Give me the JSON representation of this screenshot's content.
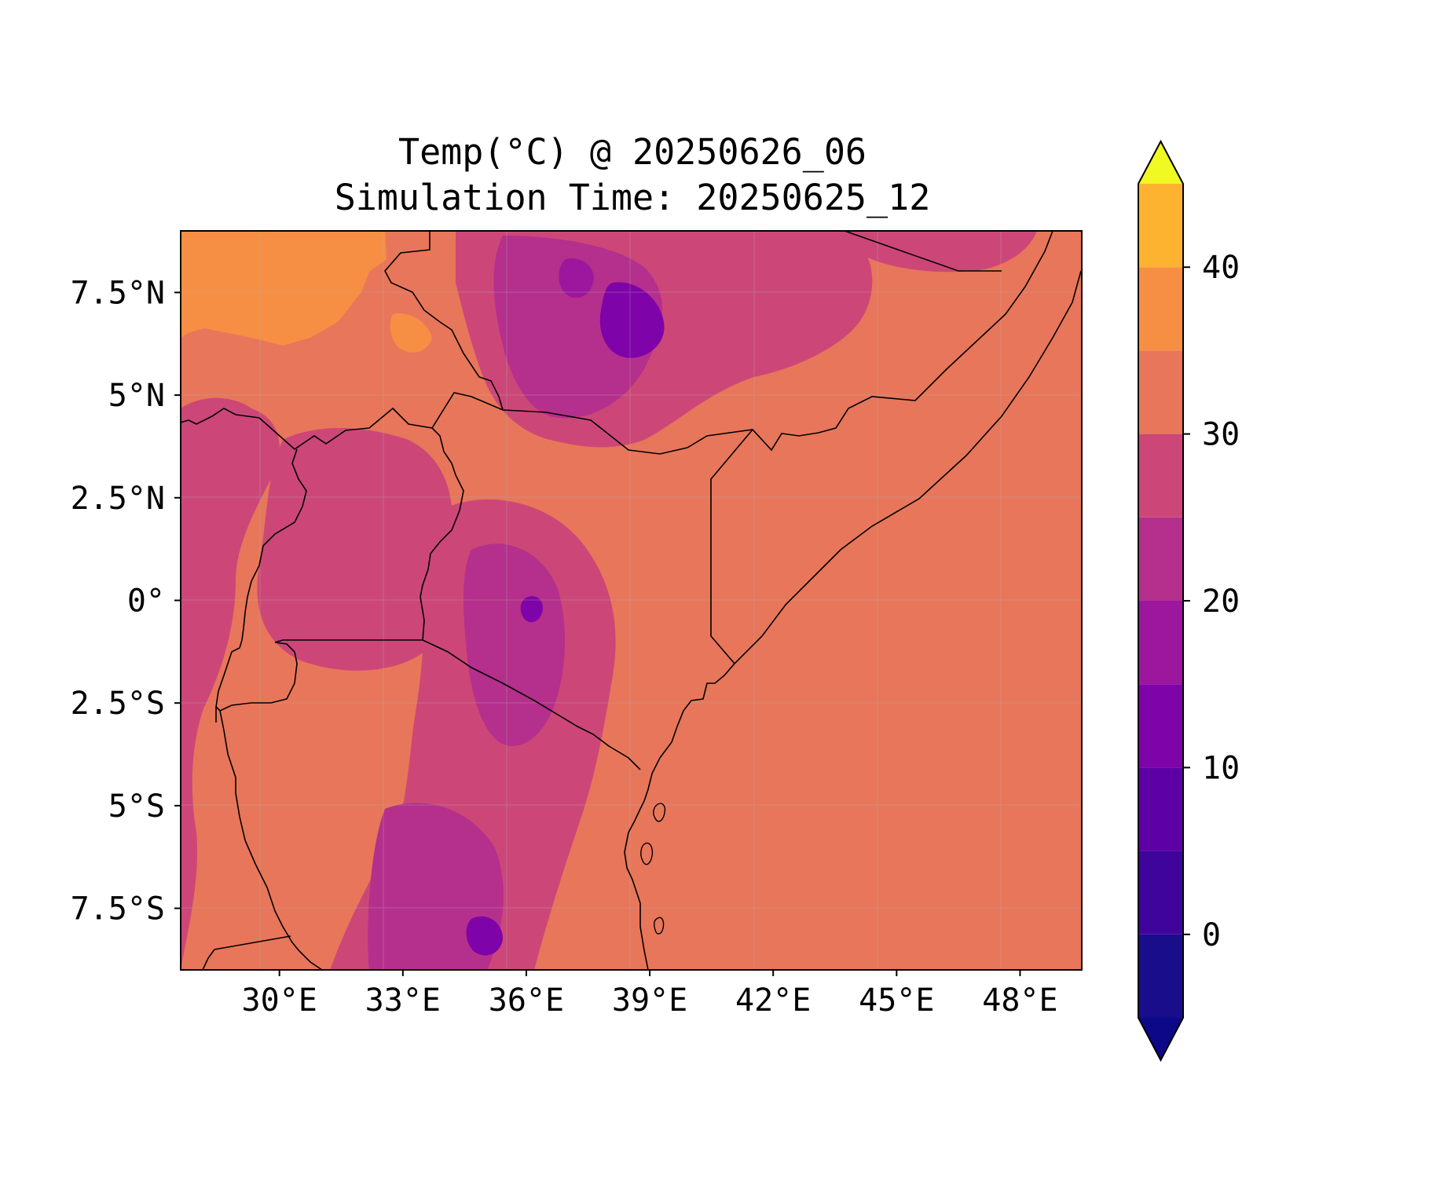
{
  "title": {
    "line1": "Temp(°C) @ 20250626_06",
    "line2": "Simulation Time: 20250625_12"
  },
  "chart_data": {
    "type": "filled-contour map",
    "variable": "Temp(°C)",
    "valid_time": "20250626_06",
    "simulation_time": "20250625_12",
    "region": "East Africa",
    "xlim": [
      27.6,
      49.5
    ],
    "ylim": [
      -9.0,
      9.0
    ],
    "x_ticks": [
      {
        "value": 30,
        "label": "30°E"
      },
      {
        "value": 33,
        "label": "33°E"
      },
      {
        "value": 36,
        "label": "36°E"
      },
      {
        "value": 39,
        "label": "39°E"
      },
      {
        "value": 42,
        "label": "42°E"
      },
      {
        "value": 45,
        "label": "45°E"
      },
      {
        "value": 48,
        "label": "48°E"
      }
    ],
    "y_ticks": [
      {
        "value": 7.5,
        "label": "7.5°N"
      },
      {
        "value": 5,
        "label": "5°N"
      },
      {
        "value": 2.5,
        "label": "2.5°N"
      },
      {
        "value": 0,
        "label": "0°"
      },
      {
        "value": -2.5,
        "label": "2.5°S"
      },
      {
        "value": -5,
        "label": "5°S"
      },
      {
        "value": -7.5,
        "label": "7.5°S"
      }
    ],
    "gridlines": true,
    "colorbar": {
      "orientation": "vertical",
      "placement": "right",
      "extend": "both",
      "levels": [
        -5,
        0,
        5,
        10,
        15,
        20,
        25,
        30,
        35,
        40,
        45
      ],
      "colors": [
        "#1a0d8c",
        "#3e049c",
        "#5d01a6",
        "#7e03a8",
        "#9c179e",
        "#b52f8c",
        "#cc4778",
        "#e8765a",
        "#f68f44",
        "#fdb32f",
        "#f3e02c"
      ],
      "under_color": "#0d0887",
      "over_color": "#f0f921",
      "ticks": [
        {
          "value": 0,
          "label": "0"
        },
        {
          "value": 10,
          "label": "10"
        },
        {
          "value": 20,
          "label": "20"
        },
        {
          "value": 30,
          "label": "30"
        },
        {
          "value": 40,
          "label": "40"
        }
      ]
    },
    "field_colors": {
      "ocean_and_lowland": "#e8765a",
      "warm_north_west": "#f68f44",
      "mid_highland": "#cc4778",
      "cool_highland": "#b52f8c",
      "cold_peak": "#9c179e",
      "coldest_peak": "#7e03a8",
      "border": "#000000"
    }
  }
}
